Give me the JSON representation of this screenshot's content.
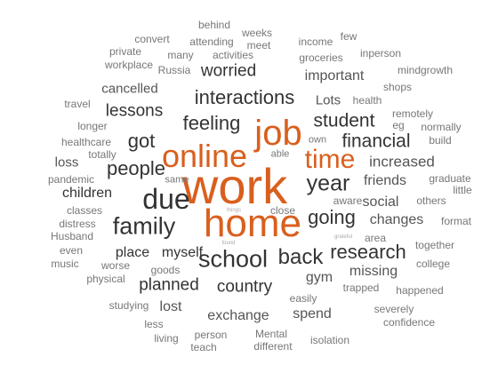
{
  "palette": {
    "accent": "#d95f1e",
    "dark": "#333333",
    "mid": "#555555",
    "light": "#777777",
    "faint": "#aaaaaa"
  },
  "words": [
    {
      "text": "work",
      "tone": "accent"
    },
    {
      "text": "home",
      "tone": "accent"
    },
    {
      "text": "online",
      "tone": "accent"
    },
    {
      "text": "job",
      "tone": "accent"
    },
    {
      "text": "time",
      "tone": "accent"
    },
    {
      "text": "due",
      "tone": "dark"
    },
    {
      "text": "family",
      "tone": "dark"
    },
    {
      "text": "school",
      "tone": "dark"
    },
    {
      "text": "back",
      "tone": "dark"
    },
    {
      "text": "year",
      "tone": "dark"
    },
    {
      "text": "research",
      "tone": "dark"
    },
    {
      "text": "going",
      "tone": "dark"
    },
    {
      "text": "people",
      "tone": "dark"
    },
    {
      "text": "got",
      "tone": "dark"
    },
    {
      "text": "feeling",
      "tone": "dark"
    },
    {
      "text": "interactions",
      "tone": "dark"
    },
    {
      "text": "student",
      "tone": "dark"
    },
    {
      "text": "financial",
      "tone": "dark"
    },
    {
      "text": "lessons",
      "tone": "dark"
    },
    {
      "text": "worried",
      "tone": "dark"
    },
    {
      "text": "country",
      "tone": "dark"
    },
    {
      "text": "planned",
      "tone": "dark"
    },
    {
      "text": "myself",
      "tone": "dark"
    },
    {
      "text": "place",
      "tone": "dark"
    },
    {
      "text": "children",
      "tone": "dark"
    },
    {
      "text": "increased",
      "tone": "mid"
    },
    {
      "text": "friends",
      "tone": "mid"
    },
    {
      "text": "social",
      "tone": "mid"
    },
    {
      "text": "changes",
      "tone": "mid"
    },
    {
      "text": "missing",
      "tone": "mid"
    },
    {
      "text": "gym",
      "tone": "mid"
    },
    {
      "text": "spend",
      "tone": "mid"
    },
    {
      "text": "exchange",
      "tone": "mid"
    },
    {
      "text": "lost",
      "tone": "mid"
    },
    {
      "text": "important",
      "tone": "mid"
    },
    {
      "text": "cancelled",
      "tone": "mid"
    },
    {
      "text": "Lots",
      "tone": "mid"
    },
    {
      "text": "loss",
      "tone": "mid"
    },
    {
      "text": "longer",
      "tone": "light"
    },
    {
      "text": "healthcare",
      "tone": "light"
    },
    {
      "text": "pandemic",
      "tone": "light"
    },
    {
      "text": "totally",
      "tone": "light"
    },
    {
      "text": "same",
      "tone": "light"
    },
    {
      "text": "classes",
      "tone": "light"
    },
    {
      "text": "distress",
      "tone": "light"
    },
    {
      "text": "Husband",
      "tone": "light"
    },
    {
      "text": "even",
      "tone": "light"
    },
    {
      "text": "music",
      "tone": "light"
    },
    {
      "text": "worse",
      "tone": "light"
    },
    {
      "text": "goods",
      "tone": "light"
    },
    {
      "text": "physical",
      "tone": "light"
    },
    {
      "text": "studying",
      "tone": "light"
    },
    {
      "text": "less",
      "tone": "light"
    },
    {
      "text": "living",
      "tone": "light"
    },
    {
      "text": "person",
      "tone": "light"
    },
    {
      "text": "teach",
      "tone": "light"
    },
    {
      "text": "Mental",
      "tone": "light"
    },
    {
      "text": "different",
      "tone": "light"
    },
    {
      "text": "isolation",
      "tone": "light"
    },
    {
      "text": "easily",
      "tone": "light"
    },
    {
      "text": "severely",
      "tone": "light"
    },
    {
      "text": "confidence",
      "tone": "light"
    },
    {
      "text": "happened",
      "tone": "light"
    },
    {
      "text": "trapped",
      "tone": "light"
    },
    {
      "text": "college",
      "tone": "light"
    },
    {
      "text": "together",
      "tone": "light"
    },
    {
      "text": "format",
      "tone": "light"
    },
    {
      "text": "area",
      "tone": "light"
    },
    {
      "text": "others",
      "tone": "light"
    },
    {
      "text": "little",
      "tone": "light"
    },
    {
      "text": "graduate",
      "tone": "light"
    },
    {
      "text": "build",
      "tone": "light"
    },
    {
      "text": "normally",
      "tone": "light"
    },
    {
      "text": "remotely",
      "tone": "light"
    },
    {
      "text": "eg",
      "tone": "light"
    },
    {
      "text": "shops",
      "tone": "light"
    },
    {
      "text": "mindgrowth",
      "tone": "light"
    },
    {
      "text": "inperson",
      "tone": "light"
    },
    {
      "text": "few",
      "tone": "light"
    },
    {
      "text": "income",
      "tone": "light"
    },
    {
      "text": "groceries",
      "tone": "light"
    },
    {
      "text": "health",
      "tone": "light"
    },
    {
      "text": "own",
      "tone": "light"
    },
    {
      "text": "able",
      "tone": "light"
    },
    {
      "text": "aware",
      "tone": "light"
    },
    {
      "text": "close",
      "tone": "light"
    },
    {
      "text": "weeks",
      "tone": "light"
    },
    {
      "text": "behind",
      "tone": "light"
    },
    {
      "text": "meet",
      "tone": "light"
    },
    {
      "text": "convert",
      "tone": "light"
    },
    {
      "text": "attending",
      "tone": "light"
    },
    {
      "text": "private",
      "tone": "light"
    },
    {
      "text": "many",
      "tone": "light"
    },
    {
      "text": "activities",
      "tone": "light"
    },
    {
      "text": "workplace",
      "tone": "light"
    },
    {
      "text": "Russia",
      "tone": "light"
    },
    {
      "text": "travel",
      "tone": "light"
    },
    {
      "text": "things",
      "tone": "faint"
    },
    {
      "text": "found",
      "tone": "faint"
    },
    {
      "text": "grateful",
      "tone": "faint"
    }
  ]
}
